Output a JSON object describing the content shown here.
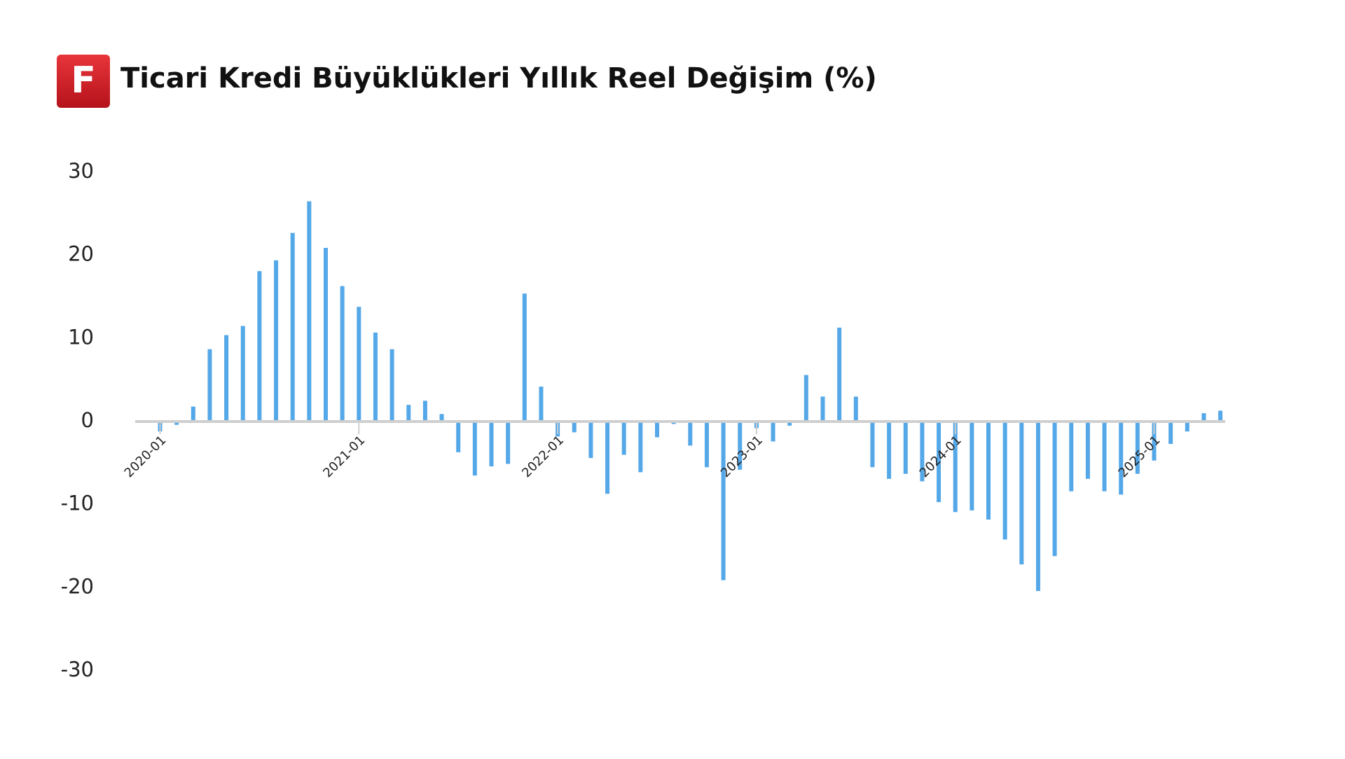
{
  "logo": "F",
  "chart_data": {
    "type": "bar",
    "title": "Ticari Kredi Büyüklükleri Yıllık Reel Değişim (%)",
    "categories": [
      "2020-01",
      null,
      null,
      null,
      null,
      null,
      null,
      null,
      null,
      null,
      null,
      null,
      "2021-01",
      null,
      null,
      null,
      null,
      null,
      null,
      null,
      null,
      null,
      null,
      null,
      "2022-01",
      null,
      null,
      null,
      null,
      null,
      null,
      null,
      null,
      null,
      null,
      null,
      "2023-01",
      null,
      null,
      null,
      null,
      null,
      null,
      null,
      null,
      null,
      null,
      null,
      "2024-01",
      null,
      null,
      null,
      null,
      null,
      null,
      null,
      null,
      null,
      null,
      null,
      "2025-01",
      null,
      null,
      null,
      null
    ],
    "values": [
      -1.2,
      -0.4,
      1.8,
      8.7,
      10.4,
      11.5,
      18.1,
      19.4,
      22.7,
      26.5,
      20.9,
      16.3,
      13.8,
      10.7,
      8.7,
      2.0,
      2.5,
      0.9,
      -3.7,
      -6.5,
      -5.4,
      -5.1,
      15.4,
      4.2,
      -1.8,
      -1.3,
      -4.4,
      -8.7,
      -4.0,
      -6.1,
      -1.9,
      -0.3,
      -2.9,
      -5.5,
      -19.1,
      -5.8,
      -0.8,
      -2.4,
      -0.5,
      5.6,
      3.0,
      11.3,
      3.0,
      -5.5,
      -6.9,
      -6.3,
      -7.2,
      -9.7,
      -10.9,
      -10.7,
      -11.8,
      -14.2,
      -17.2,
      -20.4,
      -16.2,
      -8.4,
      -6.9,
      -8.4,
      -8.8,
      -6.3,
      -4.7,
      -2.7,
      -1.2,
      1.0,
      1.3
    ],
    "color": "#55a8e8",
    "ylim": [
      -30,
      30
    ],
    "yticks": [
      -30,
      -20,
      -10,
      0,
      10,
      20,
      30
    ],
    "grid": false
  }
}
